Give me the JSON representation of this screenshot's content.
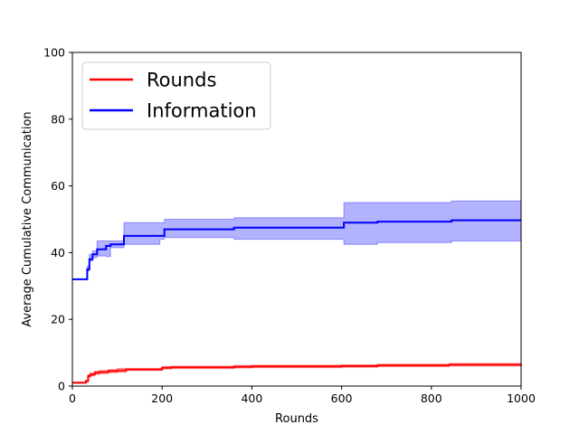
{
  "chart_data": {
    "type": "line",
    "xlabel": "Rounds",
    "ylabel": "Average Cumulative Communication",
    "xlim": [
      0,
      1000
    ],
    "ylim": [
      0,
      100
    ],
    "xticks": [
      "0",
      "200",
      "400",
      "600",
      "800",
      "1000"
    ],
    "yticks": [
      "0",
      "20",
      "40",
      "60",
      "80",
      "100"
    ],
    "grid": false,
    "legend_position": "top-left",
    "series": [
      {
        "name": "Rounds",
        "color": "#ff0000",
        "band_color": "#ff7f7f",
        "x": [
          0,
          30,
          35,
          40,
          50,
          60,
          80,
          100,
          120,
          200,
          220,
          360,
          400,
          600,
          680,
          840,
          1000
        ],
        "y": [
          1.0,
          1.5,
          3.0,
          3.5,
          4.0,
          4.2,
          4.5,
          4.7,
          5.0,
          5.5,
          5.6,
          5.8,
          5.9,
          6.0,
          6.2,
          6.4,
          6.5
        ],
        "lower": [
          0.8,
          1.2,
          2.6,
          3.0,
          3.5,
          3.7,
          4.0,
          4.1,
          4.7,
          5.1,
          5.2,
          5.4,
          5.5,
          5.6,
          5.8,
          6.0,
          6.0
        ],
        "upper": [
          1.2,
          1.8,
          3.4,
          4.0,
          4.5,
          4.7,
          5.0,
          5.3,
          5.3,
          5.9,
          6.0,
          6.2,
          6.3,
          6.4,
          6.6,
          6.8,
          7.0
        ]
      },
      {
        "name": "Information",
        "color": "#0000ff",
        "band_color": "#7f7fff",
        "x": [
          0,
          30,
          33,
          38,
          45,
          55,
          75,
          85,
          115,
          195,
          205,
          360,
          600,
          605,
          680,
          845,
          1000
        ],
        "y": [
          32,
          32,
          35,
          38,
          39.5,
          41,
          42,
          42.5,
          45,
          45,
          47,
          47.5,
          47.5,
          49,
          49.3,
          49.7,
          49.7
        ],
        "lower": [
          32,
          32,
          34.5,
          37.5,
          38.5,
          39,
          38.8,
          41.5,
          42.5,
          44,
          44.5,
          44,
          44,
          42.5,
          43,
          43.5,
          43.5
        ],
        "upper": [
          32,
          32,
          36,
          39.5,
          40.5,
          43.5,
          43.5,
          43.5,
          49,
          49,
          50,
          50.5,
          50.5,
          55,
          55,
          55.5,
          55.5
        ]
      }
    ]
  }
}
